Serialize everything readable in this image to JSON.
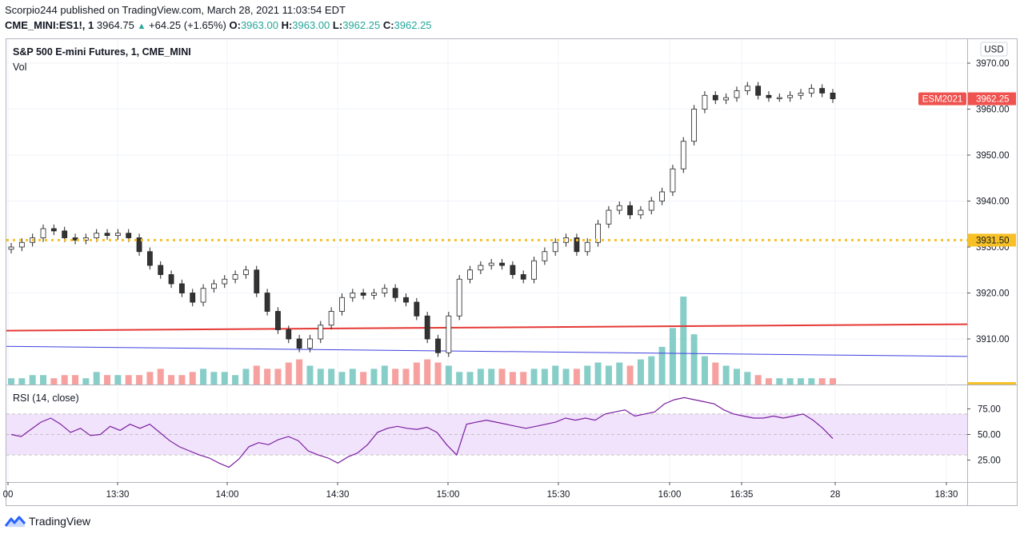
{
  "header": {
    "publisher_line": "Scorpio244 published on TradingView.com, March 28, 2021 11:03:54 EDT",
    "symbol": "CME_MINI:ES1!, 1",
    "last": "3964.75",
    "change": "+64.25 (+1.65%)",
    "o_label": "O:",
    "o_value": "3963.00",
    "h_label": "H:",
    "h_value": "3963.00",
    "l_label": "L:",
    "l_value": "3962.25",
    "c_label": "C:",
    "c_value": "3962.25"
  },
  "footer": {
    "brand": "TradingView"
  },
  "colors": {
    "up": "#26a69a",
    "down": "#ef5350",
    "dotted_level": "#f6c026",
    "red_line": "#e53935",
    "blue_line": "#3f3fdf",
    "rsi_line": "#7b1fa2",
    "rsi_band": "#f1e3fb"
  },
  "chart_data": [
    {
      "type": "candlestick",
      "title": "S&P 500 E-mini Futures, 1, CME_MINI",
      "pane_label": "Vol",
      "currency": "USD",
      "ylim": [
        3903,
        3972
      ],
      "y_ticks": [
        "3970.00",
        "3960.00",
        "3950.00",
        "3940.00",
        "3930.00",
        "3920.00",
        "3910.00"
      ],
      "x_ticks": [
        "00",
        "13:30",
        "14:00",
        "14:30",
        "15:00",
        "15:30",
        "16:00",
        "16:35",
        "28",
        "18:30"
      ],
      "price_labels": [
        {
          "name": "ESM2021",
          "value": "3962.25"
        },
        {
          "name": "",
          "value": "3931.50"
        }
      ],
      "horizontal_level": 3931.5,
      "close_path": [
        3930,
        3931,
        3932,
        3934,
        3933.5,
        3932,
        3931.5,
        3932,
        3933,
        3932.5,
        3933,
        3932,
        3929,
        3926,
        3924,
        3922,
        3920,
        3918,
        3921,
        3922,
        3923,
        3924,
        3925,
        3920,
        3916,
        3912,
        3910,
        3908,
        3910,
        3913,
        3916,
        3919,
        3920,
        3919.5,
        3920,
        3921,
        3919,
        3918,
        3915,
        3910,
        3907,
        3915,
        3923,
        3925,
        3926,
        3926.5,
        3926,
        3924,
        3923,
        3927,
        3929,
        3931,
        3932,
        3929,
        3931,
        3935,
        3938,
        3939,
        3937,
        3938,
        3940,
        3942,
        3947,
        3953,
        3960,
        3963,
        3962,
        3962.5,
        3964,
        3965,
        3963,
        3962.5,
        3962.5,
        3963,
        3963.5,
        3964.5,
        3963.5,
        3962.25
      ],
      "trend_lines": [
        {
          "from": 3911.8,
          "to": 3913.2
        },
        {
          "from": 3908.4,
          "to": 3906.2
        }
      ],
      "volume": [
        2,
        2,
        3,
        3,
        2,
        3,
        3,
        2,
        4,
        3,
        3,
        3,
        3,
        4,
        5,
        3,
        3,
        4,
        5,
        4,
        4,
        3,
        5,
        6,
        5,
        5,
        7,
        8,
        6,
        5,
        5,
        4,
        5,
        4,
        5,
        6,
        5,
        5,
        7,
        8,
        7,
        6,
        4,
        4,
        5,
        5,
        5,
        4,
        4,
        5,
        5,
        6,
        5,
        5,
        6,
        7,
        6,
        7,
        6,
        8,
        9,
        12,
        18,
        28,
        16,
        9,
        7,
        6,
        5,
        4,
        3,
        2,
        2,
        2,
        2,
        2,
        2,
        2
      ]
    },
    {
      "type": "line",
      "title": "RSI (14, close)",
      "ylim": [
        0,
        100
      ],
      "y_ticks": [
        "75.00",
        "50.00",
        "25.00"
      ],
      "band": [
        30,
        70
      ],
      "values": [
        50,
        48,
        55,
        62,
        66,
        60,
        52,
        56,
        49,
        50,
        58,
        54,
        60,
        56,
        60,
        52,
        44,
        38,
        34,
        30,
        27,
        22,
        18,
        26,
        38,
        42,
        40,
        45,
        48,
        44,
        34,
        30,
        27,
        22,
        28,
        32,
        40,
        52,
        56,
        58,
        56,
        55,
        57,
        52,
        40,
        30,
        60,
        62,
        64,
        62,
        60,
        58,
        56,
        58,
        60,
        62,
        66,
        64,
        66,
        64,
        70,
        72,
        74,
        68,
        70,
        72,
        80,
        84,
        86,
        84,
        82,
        80,
        74,
        70,
        68,
        66,
        66,
        68,
        66,
        68,
        70,
        64,
        56,
        46
      ]
    }
  ]
}
